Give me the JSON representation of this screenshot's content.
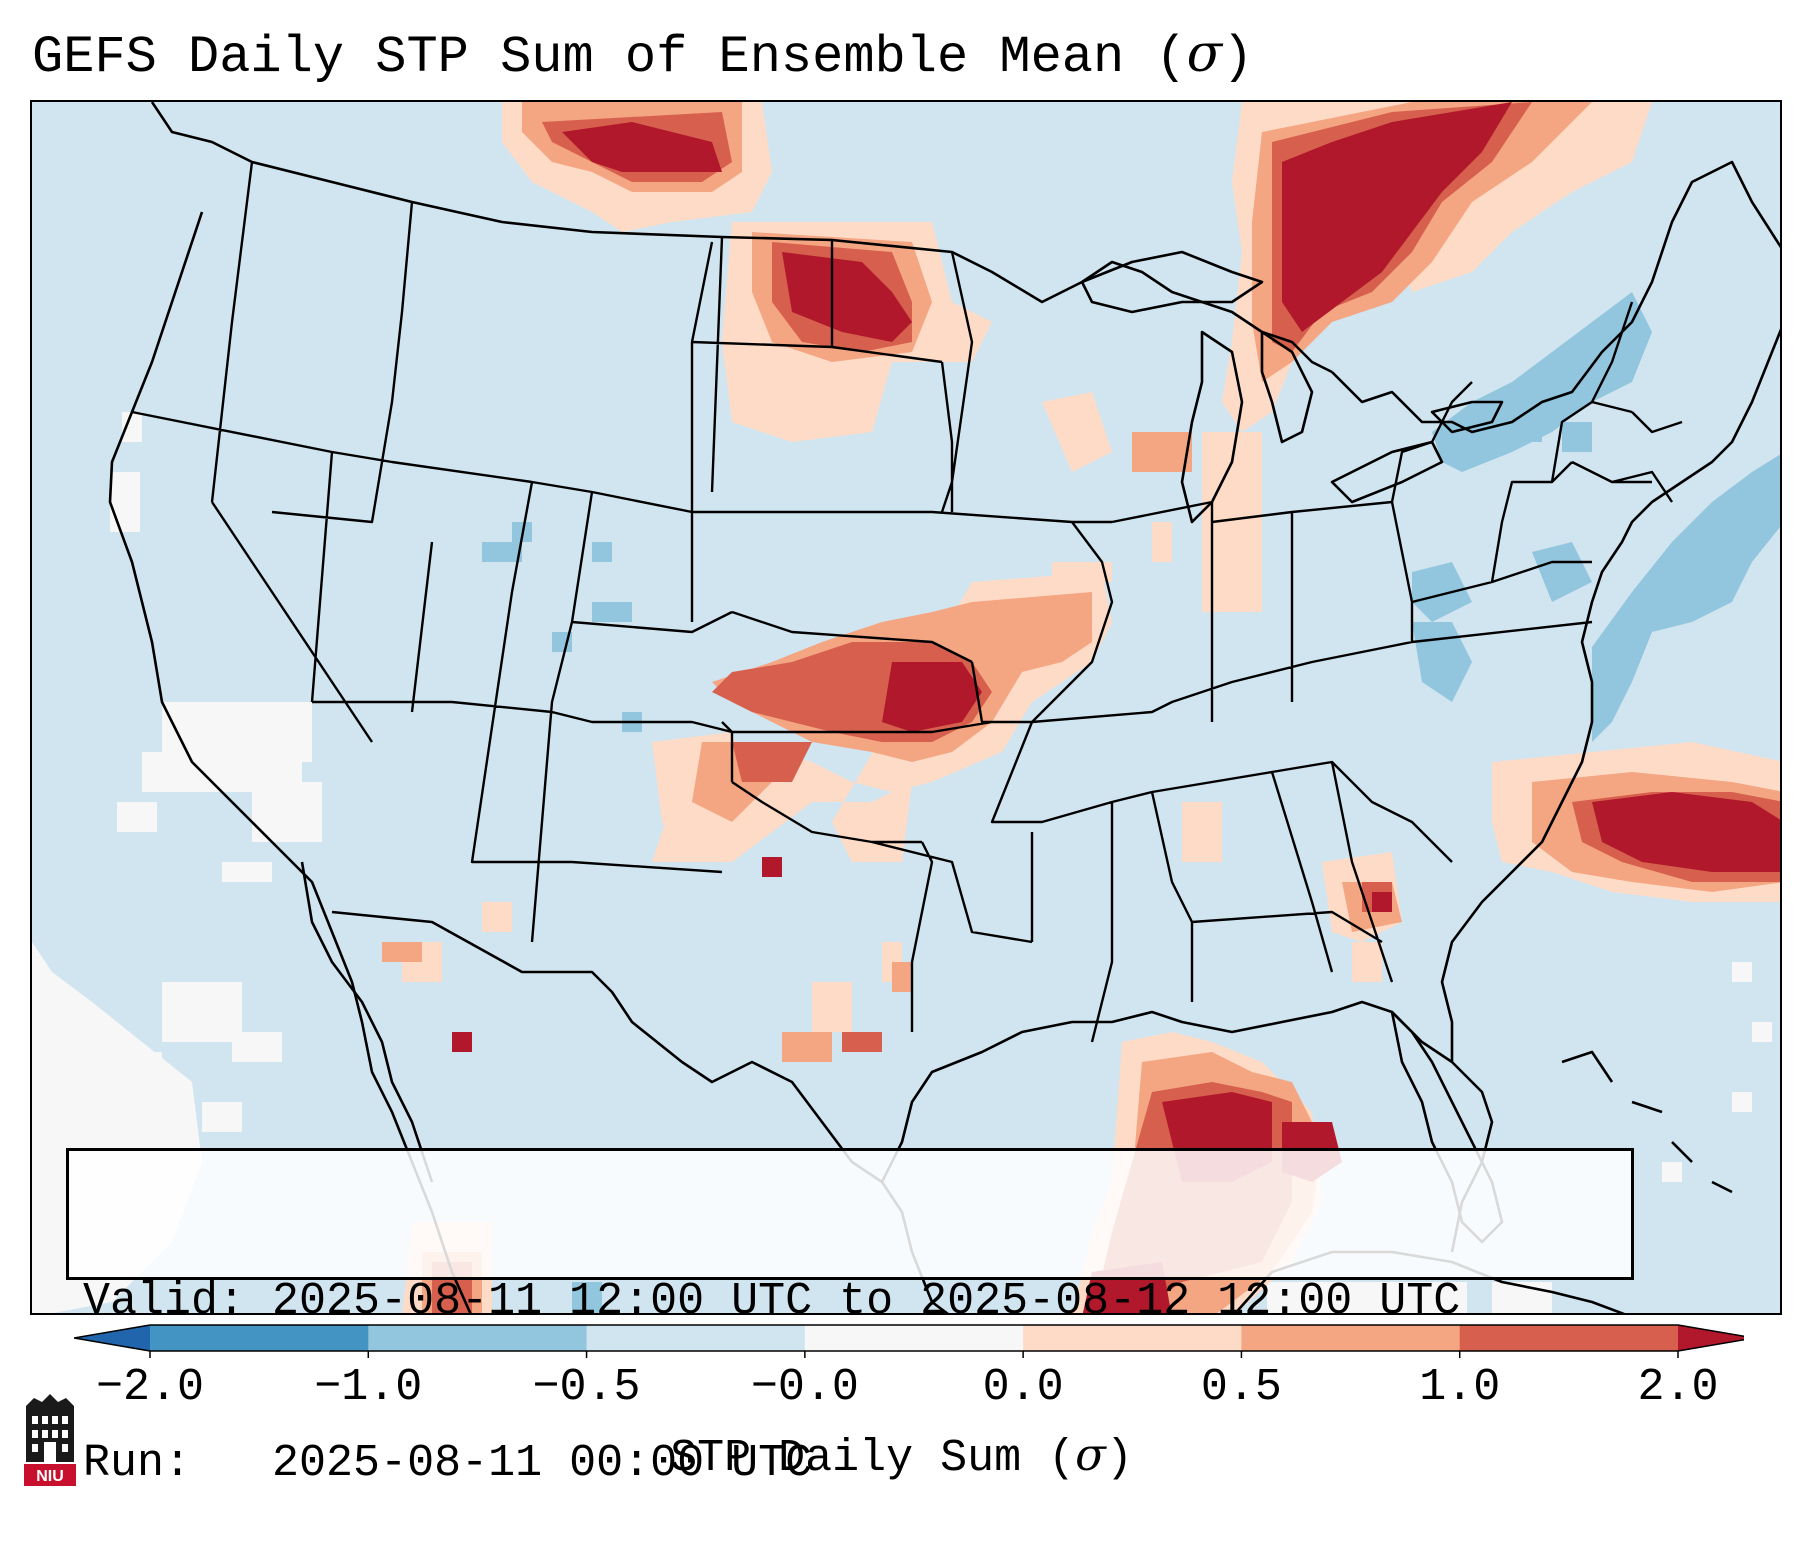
{
  "title": {
    "prefix": "GEFS Daily STP Sum of Ensemble Mean (",
    "symbol": "σ",
    "suffix": ")"
  },
  "info": {
    "valid_label": "Valid:",
    "valid_value": "2025-08-11 12:00 UTC to 2025-08-12 12:00 UTC",
    "run_label": "Run:",
    "run_value": "2025-08-11 00:00 UTC"
  },
  "colorbar": {
    "label_prefix": "STP Daily Sum (",
    "label_symbol": "σ",
    "label_suffix": ")",
    "ticks": [
      "−2.0",
      "−1.0",
      "−0.5",
      "−0.0",
      "0.0",
      "0.5",
      "1.0",
      "2.0"
    ],
    "bins": [
      {
        "range": "< -2.0",
        "color": "#2166ac"
      },
      {
        "range": "-2.0 to -1.0",
        "color": "#4393c3"
      },
      {
        "range": "-1.0 to -0.5",
        "color": "#92c5de"
      },
      {
        "range": "-0.5 to -0.0",
        "color": "#d1e5f0"
      },
      {
        "range": "-0.0 to 0.0",
        "color": "#f7f7f7"
      },
      {
        "range": "0.0 to 0.5",
        "color": "#fddbc7"
      },
      {
        "range": "0.5 to 1.0",
        "color": "#f4a582"
      },
      {
        "range": "1.0 to 2.0",
        "color": "#d6604d"
      },
      {
        "range": "> 2.0",
        "color": "#b2182b"
      }
    ]
  },
  "map": {
    "region": "Contiguous United States",
    "background_color": "#d1e5f0",
    "boundary_color": "#000000",
    "anomaly_regions": [
      {
        "area": "Southern Alberta/Saskatchewan",
        "level": "1.0 to 2.0+"
      },
      {
        "area": "Southern Manitoba / North Dakota",
        "level": "1.0 to 2.0+"
      },
      {
        "area": "Western Ontario / Lake Superior",
        "level": "1.0 to 2.0+"
      },
      {
        "area": "Kansas / Missouri",
        "level": "1.0 to 2.0+"
      },
      {
        "area": "Oklahoma Panhandle / Texas Panhandle",
        "level": "0.5 to 2.0+"
      },
      {
        "area": "Western Atlantic offshore",
        "level": "1.0 to 2.0+"
      },
      {
        "area": "Southern Georgia",
        "level": "0.5 to 2.0+"
      },
      {
        "area": "Gulf of Mexico",
        "level": "1.0 to 2.0+"
      },
      {
        "area": "Mid-Atlantic coast",
        "level": "-1.0 to -0.5"
      },
      {
        "area": "Northeast / New England",
        "level": "-1.0 to -0.5"
      },
      {
        "area": "Pacific offshore",
        "level": "-0.0 to 0.0"
      }
    ]
  },
  "logo": {
    "text": "NIU",
    "color": "#c8102e"
  }
}
